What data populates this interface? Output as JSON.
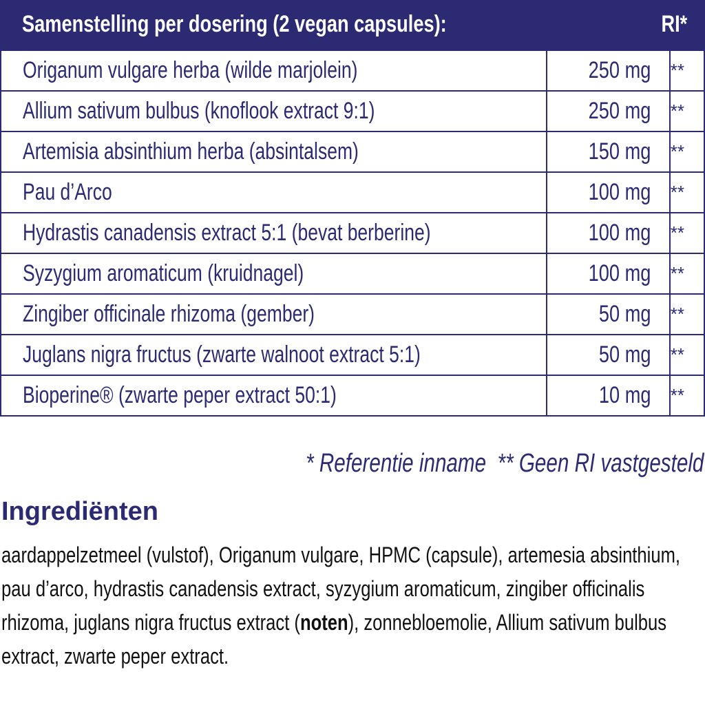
{
  "table": {
    "header": {
      "title": "Samenstelling per dosering (2 vegan capsules):",
      "ri": "RI*"
    },
    "rows": [
      [
        "Origanum vulgare herba (wilde marjolein)",
        "250 mg",
        "**"
      ],
      [
        "Allium sativum bulbus (knoflook extract 9:1)",
        "250 mg",
        "**"
      ],
      [
        "Artemisia absinthium herba (absintalsem)",
        "150 mg",
        "**"
      ],
      [
        "Pau d’Arco",
        "100 mg",
        "**"
      ],
      [
        "Hydrastis canadensis extract 5:1 (bevat berberine)",
        "100 mg",
        "**"
      ],
      [
        "Syzygium aromaticum (kruidnagel)",
        "100 mg",
        "**"
      ],
      [
        "Zingiber officinale rhizoma (gember)",
        "50 mg",
        "**"
      ],
      [
        "Juglans nigra fructus (zwarte walnoot extract 5:1)",
        "50 mg",
        "**"
      ],
      [
        "Bioperine® (zwarte peper extract 50:1)",
        "10 mg",
        "**"
      ]
    ]
  },
  "footnote": [
    "* Referentie inname",
    "** Geen RI vastgesteld"
  ],
  "ingredients": {
    "title": "Ingrediënten",
    "text": [
      "aardappelzetmeel (vulstof), Origanum vulgare, HPMC (capsule), artemesia absinthium, pau d’arco, hydrastis canadensis extract, syzygium aromaticum, zingiber officinalis rhizoma, juglans nigra fructus extract (",
      "noten",
      "), zonnebloemolie, Allium sativum bulbus extract, zwarte peper extract."
    ]
  }
}
